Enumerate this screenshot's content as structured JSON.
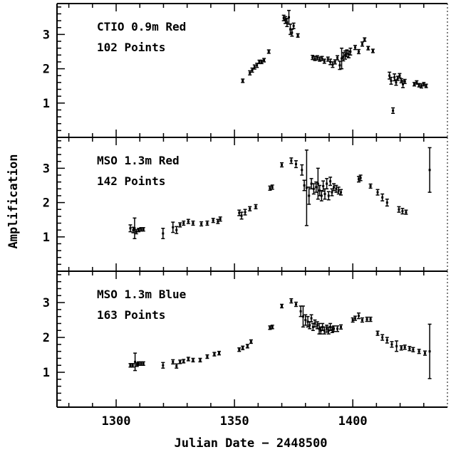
{
  "chart_data": {
    "type": "scatter",
    "xlabel": "Julian Date − 2448500",
    "ylabel": "Amplification",
    "xlim": [
      1275,
      1440
    ],
    "xticks": [
      1300,
      1350,
      1400
    ],
    "ylim": [
      0,
      3.9
    ],
    "yticks": [
      1,
      2,
      3
    ],
    "colors": {
      "axes": "#000000",
      "points": "#000000",
      "background": "#ffffff"
    },
    "panels": [
      {
        "title": "CTIO 0.9m Red",
        "subtitle": "102 Points",
        "points": [
          [
            1353.5,
            1.65,
            0.05
          ],
          [
            1356.5,
            1.88,
            0.06
          ],
          [
            1357.5,
            1.96,
            0.06
          ],
          [
            1358.5,
            2.05,
            0.06
          ],
          [
            1359.5,
            2.1,
            0.06
          ],
          [
            1360.5,
            2.2,
            0.05
          ],
          [
            1361.5,
            2.2,
            0.05
          ],
          [
            1362.5,
            2.25,
            0.05
          ],
          [
            1364.5,
            2.5,
            0.05
          ],
          [
            1370.8,
            3.48,
            0.08
          ],
          [
            1371.5,
            3.42,
            0.1
          ],
          [
            1372.2,
            3.35,
            0.12
          ],
          [
            1373.0,
            3.5,
            0.2
          ],
          [
            1373.6,
            3.15,
            0.15
          ],
          [
            1374.3,
            3.05,
            0.1
          ],
          [
            1375.0,
            3.25,
            0.08
          ],
          [
            1376.8,
            2.97,
            0.05
          ],
          [
            1383.0,
            2.33,
            0.06
          ],
          [
            1384.0,
            2.3,
            0.06
          ],
          [
            1385.0,
            2.32,
            0.06
          ],
          [
            1386.0,
            2.28,
            0.06
          ],
          [
            1387.0,
            2.3,
            0.06
          ],
          [
            1388.0,
            2.22,
            0.06
          ],
          [
            1389.5,
            2.28,
            0.06
          ],
          [
            1390.5,
            2.2,
            0.08
          ],
          [
            1391.5,
            2.12,
            0.08
          ],
          [
            1392.5,
            2.2,
            0.06
          ],
          [
            1393.5,
            2.32,
            0.06
          ],
          [
            1394.5,
            2.1,
            0.12
          ],
          [
            1395.3,
            2.3,
            0.3
          ],
          [
            1396.0,
            2.35,
            0.12
          ],
          [
            1396.8,
            2.4,
            0.12
          ],
          [
            1397.5,
            2.45,
            0.1
          ],
          [
            1398.3,
            2.42,
            0.1
          ],
          [
            1399.0,
            2.5,
            0.1
          ],
          [
            1401.0,
            2.62,
            0.06
          ],
          [
            1402.5,
            2.5,
            0.06
          ],
          [
            1404.0,
            2.72,
            0.06
          ],
          [
            1405.0,
            2.85,
            0.05
          ],
          [
            1406.5,
            2.6,
            0.05
          ],
          [
            1408.5,
            2.52,
            0.05
          ],
          [
            1415.5,
            1.8,
            0.1
          ],
          [
            1416.2,
            1.65,
            0.1
          ],
          [
            1417.0,
            0.78,
            0.08
          ],
          [
            1417.6,
            1.75,
            0.1
          ],
          [
            1418.3,
            1.6,
            0.08
          ],
          [
            1419.0,
            1.72,
            0.06
          ],
          [
            1419.8,
            1.8,
            0.06
          ],
          [
            1420.5,
            1.65,
            0.06
          ],
          [
            1421.2,
            1.55,
            0.1
          ],
          [
            1422.0,
            1.63,
            0.06
          ],
          [
            1426.0,
            1.55,
            0.05
          ],
          [
            1427.0,
            1.6,
            0.05
          ],
          [
            1428.0,
            1.52,
            0.05
          ],
          [
            1429.0,
            1.5,
            0.06
          ],
          [
            1430.0,
            1.55,
            0.05
          ],
          [
            1431.0,
            1.5,
            0.05
          ]
        ]
      },
      {
        "title": "MSO 1.3m Red",
        "subtitle": "142 Points",
        "points": [
          [
            1306.0,
            1.25,
            0.1
          ],
          [
            1307.2,
            1.2,
            0.08
          ],
          [
            1307.8,
            1.25,
            0.3
          ],
          [
            1308.5,
            1.15,
            0.06
          ],
          [
            1309.5,
            1.2,
            0.05
          ],
          [
            1310.5,
            1.22,
            0.05
          ],
          [
            1311.5,
            1.22,
            0.05
          ],
          [
            1319.8,
            1.1,
            0.15
          ],
          [
            1324.0,
            1.28,
            0.15
          ],
          [
            1325.5,
            1.2,
            0.1
          ],
          [
            1327.0,
            1.35,
            0.06
          ],
          [
            1328.5,
            1.4,
            0.06
          ],
          [
            1330.5,
            1.45,
            0.06
          ],
          [
            1332.5,
            1.4,
            0.06
          ],
          [
            1336.0,
            1.38,
            0.06
          ],
          [
            1338.5,
            1.4,
            0.06
          ],
          [
            1341.0,
            1.48,
            0.06
          ],
          [
            1343.0,
            1.45,
            0.06
          ],
          [
            1344.0,
            1.52,
            0.06
          ],
          [
            1352.0,
            1.7,
            0.08
          ],
          [
            1353.0,
            1.62,
            0.1
          ],
          [
            1354.5,
            1.72,
            0.08
          ],
          [
            1356.5,
            1.82,
            0.06
          ],
          [
            1359.0,
            1.88,
            0.06
          ],
          [
            1365.0,
            2.42,
            0.06
          ],
          [
            1366.0,
            2.45,
            0.06
          ],
          [
            1370.0,
            3.1,
            0.06
          ],
          [
            1374.0,
            3.22,
            0.08
          ],
          [
            1376.0,
            3.12,
            0.1
          ],
          [
            1378.5,
            2.95,
            0.15
          ],
          [
            1379.5,
            2.5,
            0.15
          ],
          [
            1380.5,
            2.43,
            1.1
          ],
          [
            1381.5,
            2.2,
            0.25
          ],
          [
            1382.5,
            2.55,
            0.15
          ],
          [
            1383.5,
            2.4,
            0.15
          ],
          [
            1384.5,
            2.45,
            0.15
          ],
          [
            1385.3,
            2.55,
            0.45
          ],
          [
            1386.0,
            2.35,
            0.15
          ],
          [
            1386.8,
            2.2,
            0.15
          ],
          [
            1387.5,
            2.48,
            0.15
          ],
          [
            1388.2,
            2.25,
            0.15
          ],
          [
            1389.0,
            2.55,
            0.15
          ],
          [
            1389.8,
            2.2,
            0.12
          ],
          [
            1390.5,
            2.62,
            0.12
          ],
          [
            1391.2,
            2.3,
            0.1
          ],
          [
            1392.0,
            2.45,
            0.1
          ],
          [
            1393.0,
            2.4,
            0.1
          ],
          [
            1394.0,
            2.35,
            0.1
          ],
          [
            1395.0,
            2.3,
            0.08
          ],
          [
            1402.5,
            2.68,
            0.08
          ],
          [
            1403.3,
            2.72,
            0.08
          ],
          [
            1407.5,
            2.48,
            0.06
          ],
          [
            1410.5,
            2.3,
            0.08
          ],
          [
            1412.5,
            2.15,
            0.1
          ],
          [
            1414.5,
            2.0,
            0.1
          ],
          [
            1419.5,
            1.8,
            0.08
          ],
          [
            1421.0,
            1.75,
            0.08
          ],
          [
            1422.5,
            1.72,
            0.06
          ],
          [
            1432.5,
            2.95,
            0.65
          ]
        ]
      },
      {
        "title": "MSO 1.3m Blue",
        "subtitle": "163 Points",
        "points": [
          [
            1306.0,
            1.2,
            0.05
          ],
          [
            1307.0,
            1.2,
            0.05
          ],
          [
            1308.0,
            1.3,
            0.25
          ],
          [
            1308.8,
            1.22,
            0.05
          ],
          [
            1309.5,
            1.25,
            0.05
          ],
          [
            1310.5,
            1.25,
            0.05
          ],
          [
            1311.5,
            1.25,
            0.05
          ],
          [
            1319.8,
            1.2,
            0.08
          ],
          [
            1324.0,
            1.3,
            0.06
          ],
          [
            1325.5,
            1.18,
            0.06
          ],
          [
            1327.0,
            1.3,
            0.05
          ],
          [
            1328.5,
            1.32,
            0.05
          ],
          [
            1330.5,
            1.38,
            0.05
          ],
          [
            1332.5,
            1.35,
            0.05
          ],
          [
            1335.5,
            1.35,
            0.05
          ],
          [
            1338.5,
            1.45,
            0.05
          ],
          [
            1341.5,
            1.52,
            0.05
          ],
          [
            1343.5,
            1.55,
            0.05
          ],
          [
            1352.0,
            1.65,
            0.05
          ],
          [
            1353.5,
            1.7,
            0.05
          ],
          [
            1355.5,
            1.75,
            0.05
          ],
          [
            1357.0,
            1.88,
            0.05
          ],
          [
            1365.0,
            2.28,
            0.05
          ],
          [
            1366.0,
            2.3,
            0.05
          ],
          [
            1370.0,
            2.9,
            0.05
          ],
          [
            1374.0,
            3.05,
            0.06
          ],
          [
            1376.0,
            2.95,
            0.06
          ],
          [
            1378.0,
            2.75,
            0.15
          ],
          [
            1379.0,
            2.6,
            0.3
          ],
          [
            1380.0,
            2.5,
            0.15
          ],
          [
            1381.0,
            2.45,
            0.15
          ],
          [
            1381.8,
            2.35,
            0.1
          ],
          [
            1382.5,
            2.55,
            0.1
          ],
          [
            1383.2,
            2.3,
            0.1
          ],
          [
            1384.0,
            2.4,
            0.1
          ],
          [
            1385.0,
            2.35,
            0.1
          ],
          [
            1385.8,
            2.25,
            0.15
          ],
          [
            1386.5,
            2.2,
            0.1
          ],
          [
            1387.2,
            2.3,
            0.1
          ],
          [
            1388.0,
            2.2,
            0.1
          ],
          [
            1389.0,
            2.25,
            0.1
          ],
          [
            1389.8,
            2.2,
            0.1
          ],
          [
            1390.5,
            2.3,
            0.1
          ],
          [
            1391.3,
            2.22,
            0.08
          ],
          [
            1392.0,
            2.25,
            0.08
          ],
          [
            1393.5,
            2.25,
            0.08
          ],
          [
            1395.0,
            2.3,
            0.06
          ],
          [
            1400.0,
            2.5,
            0.06
          ],
          [
            1401.0,
            2.55,
            0.06
          ],
          [
            1402.5,
            2.62,
            0.08
          ],
          [
            1404.0,
            2.5,
            0.06
          ],
          [
            1406.0,
            2.52,
            0.06
          ],
          [
            1407.5,
            2.52,
            0.06
          ],
          [
            1410.5,
            2.12,
            0.06
          ],
          [
            1412.5,
            2.0,
            0.08
          ],
          [
            1414.5,
            1.92,
            0.08
          ],
          [
            1416.5,
            1.8,
            0.08
          ],
          [
            1418.5,
            1.75,
            0.15
          ],
          [
            1420.5,
            1.7,
            0.06
          ],
          [
            1422.0,
            1.72,
            0.06
          ],
          [
            1424.0,
            1.68,
            0.06
          ],
          [
            1425.5,
            1.65,
            0.06
          ],
          [
            1428.0,
            1.6,
            0.06
          ],
          [
            1430.5,
            1.55,
            0.06
          ],
          [
            1432.5,
            1.6,
            0.78
          ]
        ]
      }
    ]
  }
}
